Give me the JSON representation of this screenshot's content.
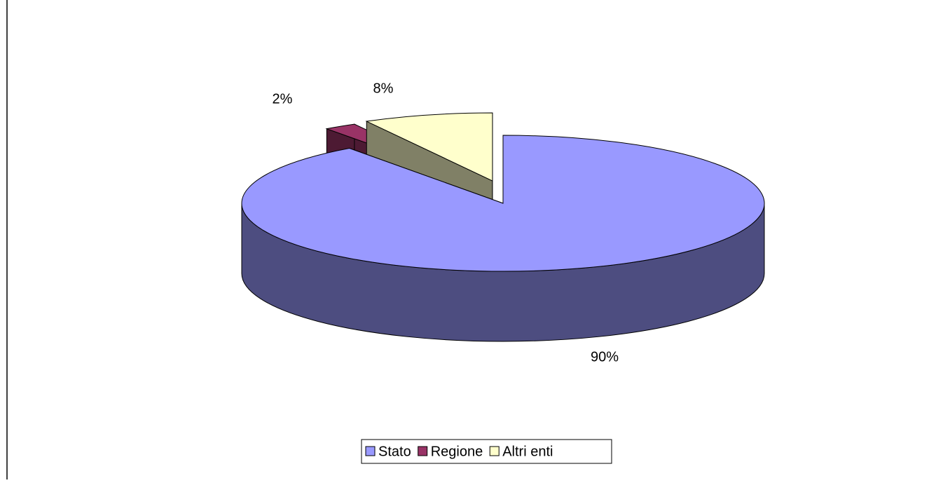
{
  "chart_data": {
    "type": "pie",
    "categories": [
      "Stato",
      "Regione",
      "Altri enti"
    ],
    "values": [
      90,
      2,
      8
    ],
    "value_labels": [
      "90%",
      "2%",
      "8%"
    ],
    "colors": [
      "#9999ff",
      "#993366",
      "#ffffcc"
    ],
    "legend": "bottom"
  }
}
